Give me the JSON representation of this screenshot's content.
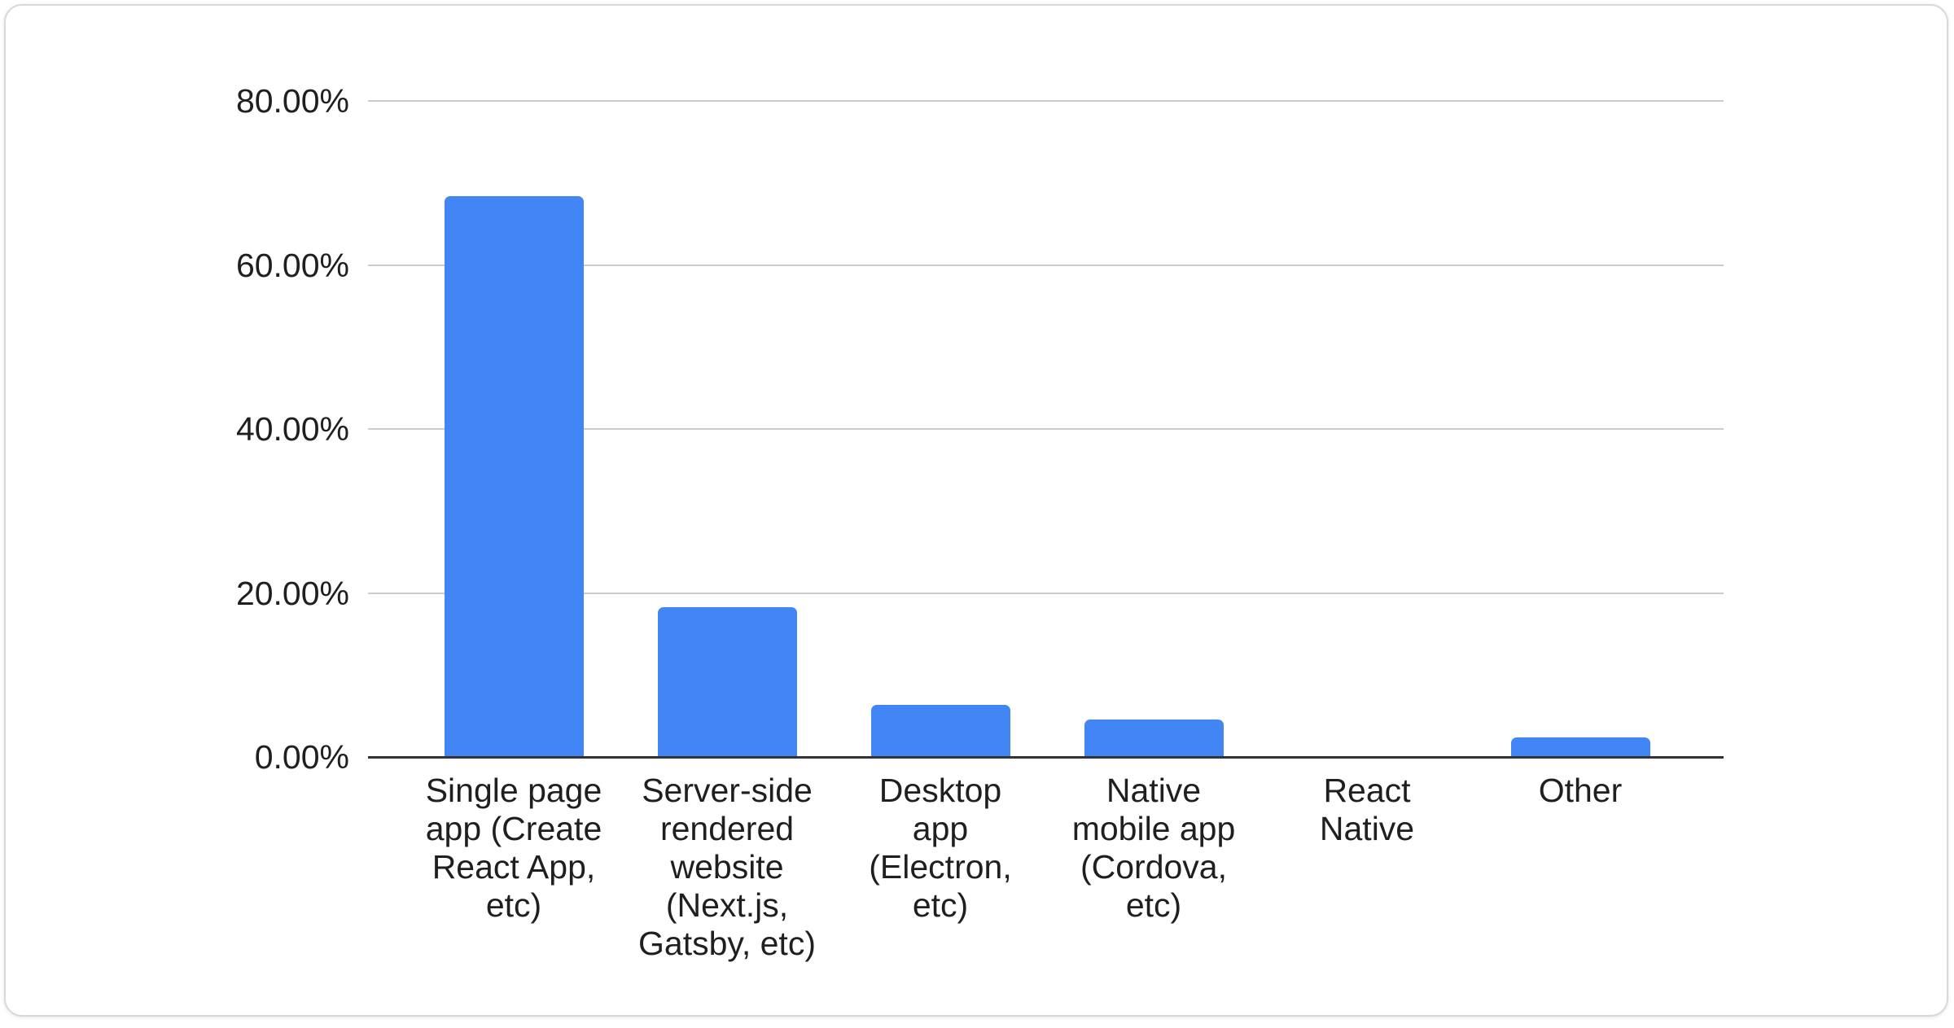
{
  "page": {
    "background": "#ffffff"
  },
  "card": {
    "background": "#ffffff",
    "border_color": "#d6d9dc"
  },
  "chart_data": {
    "type": "bar",
    "title": "",
    "xlabel": "",
    "ylabel": "",
    "legend_position": "none",
    "grid": "horizontal",
    "categories": [
      "Single page app (Create React App, etc)",
      "Server-side rendered website (Next.js, Gatsby, etc)",
      "Desktop app (Electron, etc)",
      "Native mobile app (Cordova, etc)",
      "React Native",
      "Other"
    ],
    "category_display_lines": [
      "Single page\napp (Create\nReact App,\netc)",
      "Server-side\nrendered\nwebsite\n(Next.js,\nGatsby, etc)",
      "Desktop\napp\n(Electron,\netc)",
      "Native\nmobile app\n(Cordova,\netc)",
      "React\nNative",
      "Other"
    ],
    "values": [
      68.4,
      18.3,
      6.4,
      4.6,
      0,
      2.4
    ],
    "value_unit": "%",
    "y_tick_labels": [
      "0.00%",
      "20.00%",
      "40.00%",
      "60.00%",
      "80.00%"
    ],
    "y_tick_values": [
      0,
      20,
      40,
      60,
      80
    ],
    "ylim": [
      0,
      80
    ],
    "colors": {
      "bar": "#4285f4",
      "gridline": "#cccccc",
      "axis_line": "#333333",
      "text": "#1f1f1f"
    }
  }
}
